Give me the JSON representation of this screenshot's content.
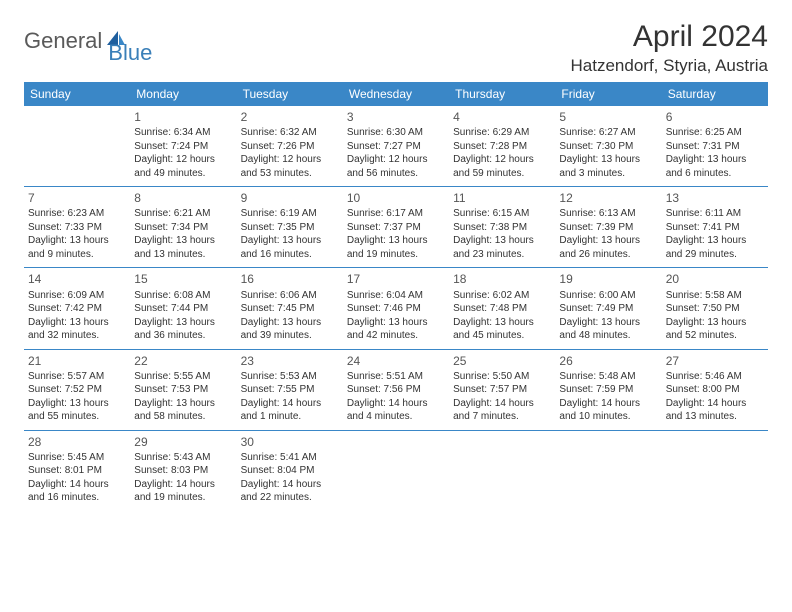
{
  "logo": {
    "part1": "General",
    "part2": "Blue"
  },
  "title": "April 2024",
  "location": "Hatzendorf, Styria, Austria",
  "header_bg": "#3a87c7",
  "weekdays": [
    "Sunday",
    "Monday",
    "Tuesday",
    "Wednesday",
    "Thursday",
    "Friday",
    "Saturday"
  ],
  "weeks": [
    [
      null,
      {
        "n": "1",
        "sr": "6:34 AM",
        "ss": "7:24 PM",
        "dl": "12 hours and 49 minutes."
      },
      {
        "n": "2",
        "sr": "6:32 AM",
        "ss": "7:26 PM",
        "dl": "12 hours and 53 minutes."
      },
      {
        "n": "3",
        "sr": "6:30 AM",
        "ss": "7:27 PM",
        "dl": "12 hours and 56 minutes."
      },
      {
        "n": "4",
        "sr": "6:29 AM",
        "ss": "7:28 PM",
        "dl": "12 hours and 59 minutes."
      },
      {
        "n": "5",
        "sr": "6:27 AM",
        "ss": "7:30 PM",
        "dl": "13 hours and 3 minutes."
      },
      {
        "n": "6",
        "sr": "6:25 AM",
        "ss": "7:31 PM",
        "dl": "13 hours and 6 minutes."
      }
    ],
    [
      {
        "n": "7",
        "sr": "6:23 AM",
        "ss": "7:33 PM",
        "dl": "13 hours and 9 minutes."
      },
      {
        "n": "8",
        "sr": "6:21 AM",
        "ss": "7:34 PM",
        "dl": "13 hours and 13 minutes."
      },
      {
        "n": "9",
        "sr": "6:19 AM",
        "ss": "7:35 PM",
        "dl": "13 hours and 16 minutes."
      },
      {
        "n": "10",
        "sr": "6:17 AM",
        "ss": "7:37 PM",
        "dl": "13 hours and 19 minutes."
      },
      {
        "n": "11",
        "sr": "6:15 AM",
        "ss": "7:38 PM",
        "dl": "13 hours and 23 minutes."
      },
      {
        "n": "12",
        "sr": "6:13 AM",
        "ss": "7:39 PM",
        "dl": "13 hours and 26 minutes."
      },
      {
        "n": "13",
        "sr": "6:11 AM",
        "ss": "7:41 PM",
        "dl": "13 hours and 29 minutes."
      }
    ],
    [
      {
        "n": "14",
        "sr": "6:09 AM",
        "ss": "7:42 PM",
        "dl": "13 hours and 32 minutes."
      },
      {
        "n": "15",
        "sr": "6:08 AM",
        "ss": "7:44 PM",
        "dl": "13 hours and 36 minutes."
      },
      {
        "n": "16",
        "sr": "6:06 AM",
        "ss": "7:45 PM",
        "dl": "13 hours and 39 minutes."
      },
      {
        "n": "17",
        "sr": "6:04 AM",
        "ss": "7:46 PM",
        "dl": "13 hours and 42 minutes."
      },
      {
        "n": "18",
        "sr": "6:02 AM",
        "ss": "7:48 PM",
        "dl": "13 hours and 45 minutes."
      },
      {
        "n": "19",
        "sr": "6:00 AM",
        "ss": "7:49 PM",
        "dl": "13 hours and 48 minutes."
      },
      {
        "n": "20",
        "sr": "5:58 AM",
        "ss": "7:50 PM",
        "dl": "13 hours and 52 minutes."
      }
    ],
    [
      {
        "n": "21",
        "sr": "5:57 AM",
        "ss": "7:52 PM",
        "dl": "13 hours and 55 minutes."
      },
      {
        "n": "22",
        "sr": "5:55 AM",
        "ss": "7:53 PM",
        "dl": "13 hours and 58 minutes."
      },
      {
        "n": "23",
        "sr": "5:53 AM",
        "ss": "7:55 PM",
        "dl": "14 hours and 1 minute."
      },
      {
        "n": "24",
        "sr": "5:51 AM",
        "ss": "7:56 PM",
        "dl": "14 hours and 4 minutes."
      },
      {
        "n": "25",
        "sr": "5:50 AM",
        "ss": "7:57 PM",
        "dl": "14 hours and 7 minutes."
      },
      {
        "n": "26",
        "sr": "5:48 AM",
        "ss": "7:59 PM",
        "dl": "14 hours and 10 minutes."
      },
      {
        "n": "27",
        "sr": "5:46 AM",
        "ss": "8:00 PM",
        "dl": "14 hours and 13 minutes."
      }
    ],
    [
      {
        "n": "28",
        "sr": "5:45 AM",
        "ss": "8:01 PM",
        "dl": "14 hours and 16 minutes."
      },
      {
        "n": "29",
        "sr": "5:43 AM",
        "ss": "8:03 PM",
        "dl": "14 hours and 19 minutes."
      },
      {
        "n": "30",
        "sr": "5:41 AM",
        "ss": "8:04 PM",
        "dl": "14 hours and 22 minutes."
      },
      null,
      null,
      null,
      null
    ]
  ],
  "labels": {
    "sunrise": "Sunrise: ",
    "sunset": "Sunset: ",
    "daylight": "Daylight: "
  }
}
